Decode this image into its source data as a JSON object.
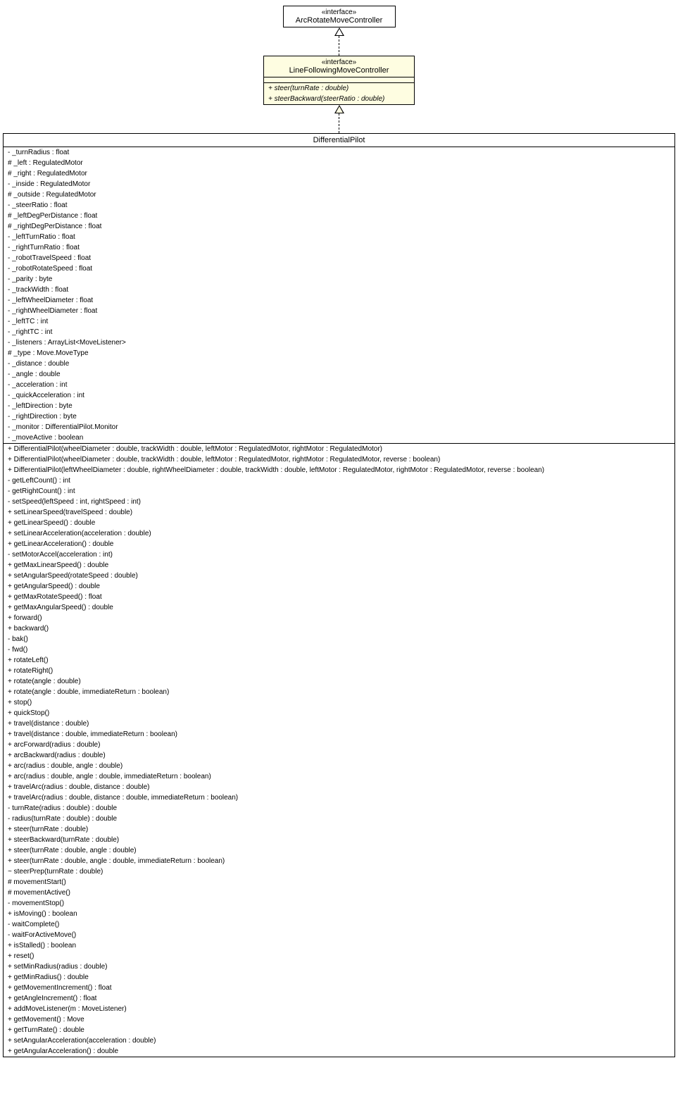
{
  "colors": {
    "background": "#ffffff",
    "cream": "#fefde1",
    "border": "#000000"
  },
  "box1": {
    "stereotype": "«interface»",
    "name": "ArcRotateMoveController"
  },
  "box2": {
    "stereotype": "«interface»",
    "name": "LineFollowingMoveController",
    "methods": [
      "+ steer(turnRate : double)",
      "+ steerBackward(steerRatio : double)"
    ]
  },
  "box3": {
    "name": "DifferentialPilot",
    "attributes": [
      "- _turnRadius : float",
      "# _left : RegulatedMotor",
      "# _right : RegulatedMotor",
      "- _inside : RegulatedMotor",
      "# _outside : RegulatedMotor",
      "- _steerRatio : float",
      "# _leftDegPerDistance : float",
      "# _rightDegPerDistance : float",
      "- _leftTurnRatio : float",
      "- _rightTurnRatio : float",
      "- _robotTravelSpeed : float",
      "- _robotRotateSpeed : float",
      "- _parity : byte",
      "- _trackWidth : float",
      "- _leftWheelDiameter : float",
      "- _rightWheelDiameter : float",
      "- _leftTC : int",
      "- _rightTC : int",
      "- _listeners : ArrayList<MoveListener>",
      "# _type : Move.MoveType",
      "- _distance : double",
      "- _angle : double",
      "- _acceleration : int",
      "- _quickAcceleration : int",
      "- _leftDirection : byte",
      "- _rightDirection : byte",
      "- _monitor : DifferentialPilot.Monitor",
      "- _moveActive : boolean"
    ],
    "methods": [
      "+ DifferentialPilot(wheelDiameter : double, trackWidth : double, leftMotor : RegulatedMotor, rightMotor : RegulatedMotor)",
      "+ DifferentialPilot(wheelDiameter : double, trackWidth : double, leftMotor : RegulatedMotor, rightMotor : RegulatedMotor, reverse : boolean)",
      "+ DifferentialPilot(leftWheelDiameter : double, rightWheelDiameter : double, trackWidth : double, leftMotor : RegulatedMotor, rightMotor : RegulatedMotor, reverse : boolean)",
      "- getLeftCount() : int",
      "- getRightCount() : int",
      "- setSpeed(leftSpeed : int, rightSpeed : int)",
      "+ setLinearSpeed(travelSpeed : double)",
      "+ getLinearSpeed() : double",
      "+ setLinearAcceleration(acceleration : double)",
      "+ getLinearAcceleration() : double",
      "- setMotorAccel(acceleration : int)",
      "+ getMaxLinearSpeed() : double",
      "+ setAngularSpeed(rotateSpeed : double)",
      "+ getAngularSpeed() : double",
      "+ getMaxRotateSpeed() : float",
      "+ getMaxAngularSpeed() : double",
      "+ forward()",
      "+ backward()",
      "- bak()",
      "- fwd()",
      "+ rotateLeft()",
      "+ rotateRight()",
      "+ rotate(angle : double)",
      "+ rotate(angle : double, immediateReturn : boolean)",
      "+ stop()",
      "+ quickStop()",
      "+ travel(distance : double)",
      "+ travel(distance : double, immediateReturn : boolean)",
      "+ arcForward(radius : double)",
      "+ arcBackward(radius : double)",
      "+ arc(radius : double, angle : double)",
      "+ arc(radius : double, angle : double, immediateReturn : boolean)",
      "+ travelArc(radius : double, distance : double)",
      "+ travelArc(radius : double, distance : double, immediateReturn : boolean)",
      "- turnRate(radius : double) : double",
      "- radius(turnRate : double) : double",
      "+ steer(turnRate : double)",
      "+ steerBackward(turnRate : double)",
      "+ steer(turnRate : double, angle : double)",
      "+ steer(turnRate : double, angle : double, immediateReturn : boolean)",
      "~ steerPrep(turnRate : double)",
      "# movementStart()",
      "# movementActive()",
      "- movementStop()",
      "+ isMoving() : boolean",
      "- waitComplete()",
      "- waitForActiveMove()",
      "+ isStalled() : boolean",
      "+ reset()",
      "+ setMinRadius(radius : double)",
      "+ getMinRadius() : double",
      "+ getMovementIncrement() : float",
      "+ getAngleIncrement() : float",
      "+ addMoveListener(m : MoveListener)",
      "+ getMovement() : Move",
      "+ getTurnRate() : double",
      "+ setAngularAcceleration(acceleration : double)",
      "+ getAngularAcceleration() : double"
    ]
  }
}
